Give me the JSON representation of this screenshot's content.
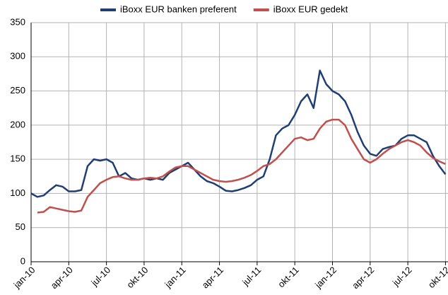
{
  "chart_data": {
    "type": "line",
    "x": [
      0,
      0.5,
      1,
      1.5,
      2,
      2.5,
      3,
      3.5,
      4,
      4.5,
      5,
      5.5,
      6,
      6.5,
      7,
      7.5,
      8,
      8.5,
      9,
      9.5,
      10,
      10.5,
      11,
      11.5,
      12,
      12.5,
      13,
      13.5,
      14,
      14.5,
      15,
      15.5,
      16,
      16.5,
      17,
      17.5,
      18,
      18.5,
      19,
      19.5,
      20,
      20.5,
      21,
      21.5,
      22,
      22.5,
      23,
      23.5,
      24,
      24.5,
      25,
      25.5,
      26,
      26.5,
      27,
      27.5,
      28,
      28.5,
      29,
      29.5,
      30,
      30.5,
      31,
      31.5,
      32,
      32.5,
      33
    ],
    "series": [
      {
        "name": "iBoxx EUR banken preferent",
        "color": "#1f3f73",
        "values": [
          100,
          95,
          97,
          105,
          112,
          110,
          103,
          103,
          105,
          140,
          150,
          148,
          150,
          145,
          125,
          130,
          122,
          120,
          122,
          120,
          122,
          120,
          130,
          135,
          140,
          145,
          135,
          125,
          118,
          115,
          110,
          104,
          103,
          105,
          108,
          112,
          120,
          125,
          150,
          185,
          195,
          200,
          215,
          235,
          245,
          225,
          280,
          260,
          250,
          245,
          235,
          215,
          190,
          170,
          158,
          155,
          165,
          168,
          170,
          180,
          185,
          185,
          180,
          175,
          155,
          140,
          128
        ]
      },
      {
        "name": "iBoxx EUR gedekt",
        "color": "#c0504d",
        "values": [
          null,
          72,
          73,
          80,
          78,
          76,
          74,
          73,
          75,
          95,
          105,
          115,
          120,
          124,
          125,
          122,
          120,
          120,
          122,
          123,
          122,
          125,
          132,
          138,
          140,
          140,
          135,
          130,
          125,
          120,
          118,
          117,
          118,
          120,
          123,
          127,
          133,
          140,
          143,
          150,
          160,
          170,
          180,
          182,
          178,
          180,
          195,
          205,
          208,
          208,
          200,
          180,
          165,
          150,
          145,
          150,
          158,
          165,
          170,
          175,
          178,
          175,
          170,
          160,
          152,
          147,
          143
        ]
      }
    ],
    "xlim": [
      0,
      33.2
    ],
    "xticks": [
      {
        "value": 0,
        "label": "jan-10"
      },
      {
        "value": 3,
        "label": "apr-10"
      },
      {
        "value": 6,
        "label": "jul-10"
      },
      {
        "value": 9,
        "label": "okt-10"
      },
      {
        "value": 12,
        "label": "jan-11"
      },
      {
        "value": 15,
        "label": "apr-11"
      },
      {
        "value": 18,
        "label": "jul-11"
      },
      {
        "value": 21,
        "label": "okt-11"
      },
      {
        "value": 24,
        "label": "jan-12"
      },
      {
        "value": 27,
        "label": "apr-12"
      },
      {
        "value": 30,
        "label": "jul-12"
      },
      {
        "value": 33,
        "label": "okt-12"
      }
    ],
    "ylim": [
      0,
      350
    ],
    "yticks": [
      0,
      50,
      100,
      150,
      200,
      250,
      300,
      350
    ],
    "grid": true,
    "legend": "top"
  }
}
